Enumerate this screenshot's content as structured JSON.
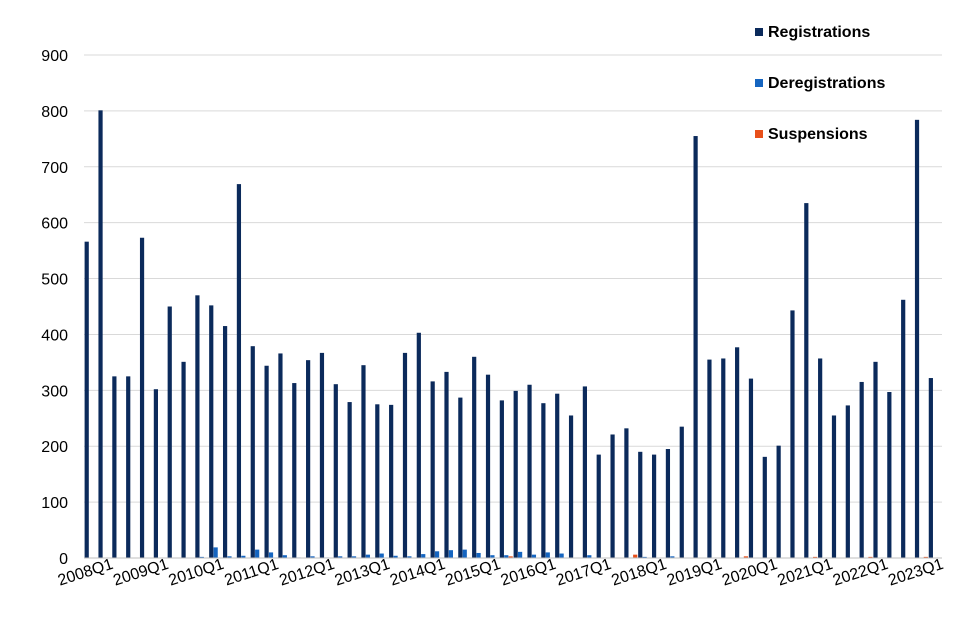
{
  "chart_data": {
    "type": "bar",
    "title": "",
    "xlabel": "",
    "ylabel": "",
    "ylim": [
      0,
      900
    ],
    "yticks": [
      0,
      100,
      200,
      300,
      400,
      500,
      600,
      700,
      800,
      900
    ],
    "grid": true,
    "legend_position": "top-right",
    "categories": [
      "2008Q1",
      "2008Q2",
      "2008Q3",
      "2008Q4",
      "2009Q1",
      "2009Q2",
      "2009Q3",
      "2009Q4",
      "2010Q1",
      "2010Q2",
      "2010Q3",
      "2010Q4",
      "2011Q1",
      "2011Q2",
      "2011Q3",
      "2011Q4",
      "2012Q1",
      "2012Q2",
      "2012Q3",
      "2012Q4",
      "2013Q1",
      "2013Q2",
      "2013Q3",
      "2013Q4",
      "2014Q1",
      "2014Q2",
      "2014Q3",
      "2014Q4",
      "2015Q1",
      "2015Q2",
      "2015Q3",
      "2015Q4",
      "2016Q1",
      "2016Q2",
      "2016Q3",
      "2016Q4",
      "2017Q1",
      "2017Q2",
      "2017Q3",
      "2017Q4",
      "2018Q1",
      "2018Q2",
      "2018Q3",
      "2018Q4",
      "2019Q1",
      "2019Q2",
      "2019Q3",
      "2019Q4",
      "2020Q1",
      "2020Q2",
      "2020Q3",
      "2020Q4",
      "2021Q1",
      "2021Q2",
      "2021Q3",
      "2021Q4",
      "2022Q1",
      "2022Q2",
      "2022Q3",
      "2022Q4",
      "2023Q1",
      "2023Q2"
    ],
    "tick_labels": [
      "2008Q1",
      "2009Q1",
      "2010Q1",
      "2011Q1",
      "2012Q1",
      "2013Q1",
      "2014Q1",
      "2015Q1",
      "2016Q1",
      "2017Q1",
      "2018Q1",
      "2019Q1",
      "2020Q1",
      "2021Q1",
      "2022Q1",
      "2023Q1"
    ],
    "series": [
      {
        "name": "Registrations",
        "color": "#0b2a5b",
        "values": [
          566,
          801,
          325,
          325,
          573,
          302,
          450,
          351,
          470,
          452,
          415,
          669,
          379,
          344,
          366,
          313,
          354,
          367,
          311,
          279,
          345,
          275,
          274,
          367,
          403,
          316,
          333,
          287,
          360,
          328,
          282,
          299,
          310,
          277,
          294,
          255,
          307,
          185,
          221,
          232,
          190,
          185,
          195,
          235,
          755,
          355,
          357,
          377,
          321,
          181,
          201,
          443,
          635,
          357,
          255,
          273,
          315,
          351,
          297,
          462,
          784,
          322
        ]
      },
      {
        "name": "Deregistrations",
        "color": "#1565c0",
        "values": [
          0,
          0,
          0,
          0,
          0,
          0,
          0,
          0,
          2,
          19,
          3,
          4,
          15,
          10,
          5,
          1,
          3,
          1,
          3,
          3,
          6,
          8,
          4,
          3,
          7,
          12,
          14,
          15,
          9,
          5,
          5,
          11,
          6,
          10,
          8,
          0,
          5,
          0,
          0,
          0,
          2,
          0,
          3,
          0,
          0,
          0,
          0,
          0,
          0,
          0,
          0,
          0,
          0,
          0,
          0,
          0,
          0,
          0,
          0,
          0,
          0,
          0
        ]
      },
      {
        "name": "Suspensions",
        "color": "#e8501a",
        "values": [
          0,
          0,
          0,
          0,
          0,
          0,
          0,
          0,
          0,
          0,
          0,
          0,
          0,
          0,
          0,
          0,
          0,
          0,
          0,
          0,
          0,
          0,
          0,
          0,
          0,
          0,
          0,
          0,
          0,
          0,
          3,
          0,
          0,
          0,
          0,
          0,
          0,
          0,
          0,
          6,
          0,
          0,
          0,
          0,
          0,
          0,
          0,
          3,
          0,
          0,
          0,
          0,
          2,
          0,
          0,
          0,
          2,
          0,
          0,
          0,
          2,
          0
        ]
      }
    ]
  }
}
